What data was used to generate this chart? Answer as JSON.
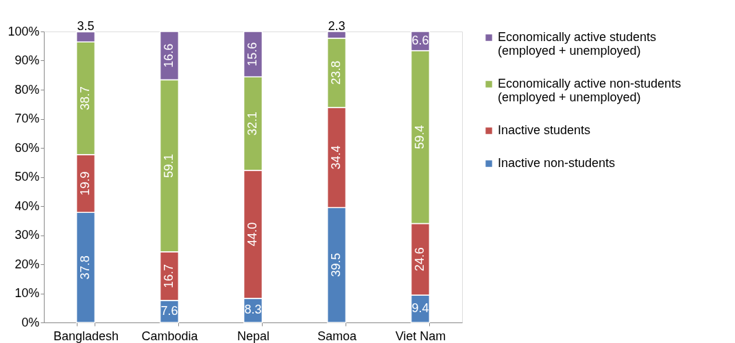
{
  "chart_data": {
    "type": "bar",
    "stacked": true,
    "categories": [
      "Bangladesh",
      "Cambodia",
      "Nepal",
      "Samoa",
      "Viet Nam"
    ],
    "series": [
      {
        "name": "Inactive non-students",
        "color": "#4f81bd",
        "values": [
          37.8,
          7.6,
          8.3,
          39.5,
          9.4
        ],
        "value_labels": [
          "37.8",
          "7.6",
          "8.3",
          "39.5",
          "9.4"
        ]
      },
      {
        "name": "Inactive students",
        "color": "#c0504d",
        "values": [
          19.9,
          16.7,
          44.0,
          34.4,
          24.6
        ],
        "value_labels": [
          "19.9",
          "16.7",
          "44.0",
          "34.4",
          "24.6"
        ]
      },
      {
        "name": "Economically active non-students\n(employed + unemployed)",
        "color": "#9bbb59",
        "values": [
          38.7,
          59.1,
          32.1,
          23.8,
          59.4
        ],
        "value_labels": [
          "38.7",
          "59.1",
          "32.1",
          "23.8",
          "59.4"
        ]
      },
      {
        "name": "Economically active students\n(employed + unemployed)",
        "color": "#8064a2",
        "values": [
          3.5,
          16.6,
          15.6,
          2.3,
          6.6
        ],
        "value_labels": [
          "3.5",
          "16.6",
          "15.6",
          "2.3",
          "6.6"
        ]
      }
    ],
    "ylim": [
      0,
      100
    ],
    "yticks": [
      {
        "value": 0,
        "label": "0%"
      },
      {
        "value": 10,
        "label": "10%"
      },
      {
        "value": 20,
        "label": "20%"
      },
      {
        "value": 30,
        "label": "30%"
      },
      {
        "value": 40,
        "label": "40%"
      },
      {
        "value": 50,
        "label": "50%"
      },
      {
        "value": 60,
        "label": "60%"
      },
      {
        "value": 70,
        "label": "70%"
      },
      {
        "value": 80,
        "label": "80%"
      },
      {
        "value": 90,
        "label": "90%"
      },
      {
        "value": 100,
        "label": "100%"
      }
    ],
    "grid": false,
    "legend": "right"
  }
}
